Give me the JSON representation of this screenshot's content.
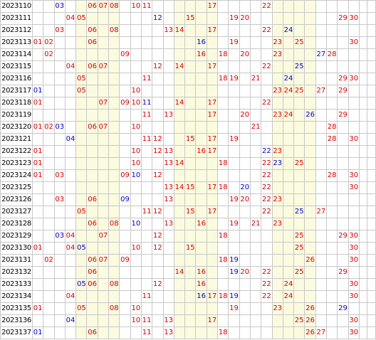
{
  "columns": 32,
  "shaded_columns": [
    5,
    6,
    7,
    8,
    14,
    15,
    16,
    17,
    23,
    24,
    25,
    26
  ],
  "colors": {
    "red": "#d40000",
    "blue": "#0000cc",
    "shade": "#fbfbdf",
    "grid": "#c8c8c8"
  },
  "rows": [
    {
      "issue": "2023110",
      "red": [
        "06",
        "07",
        "08",
        "10",
        "11",
        "17",
        "22"
      ],
      "blue": [
        "03"
      ]
    },
    {
      "issue": "2023111",
      "red": [
        "04",
        "05",
        "15",
        "19",
        "20",
        "29",
        "30"
      ],
      "blue": [
        "12"
      ]
    },
    {
      "issue": "2023112",
      "red": [
        "03",
        "06",
        "08",
        "13",
        "14",
        "17",
        "22"
      ],
      "blue": [
        "24"
      ]
    },
    {
      "issue": "2023113",
      "red": [
        "01",
        "02",
        "06",
        "19",
        "23",
        "25",
        "30"
      ],
      "blue": [
        "16"
      ]
    },
    {
      "issue": "2023114",
      "red": [
        "02",
        "09",
        "16",
        "18",
        "20",
        "23",
        "28"
      ],
      "blue": [
        "27"
      ]
    },
    {
      "issue": "2023115",
      "red": [
        "04",
        "06",
        "07",
        "12",
        "14",
        "17",
        "22"
      ],
      "blue": [
        "25"
      ]
    },
    {
      "issue": "2023116",
      "red": [
        "05",
        "11",
        "18",
        "19",
        "21",
        "29",
        "30"
      ],
      "blue": [
        "24"
      ]
    },
    {
      "issue": "2023117",
      "red": [
        "05",
        "10",
        "23",
        "24",
        "25",
        "27",
        "29"
      ],
      "blue": [
        "01"
      ]
    },
    {
      "issue": "2023118",
      "red": [
        "01",
        "07",
        "09",
        "10",
        "14",
        "17",
        "22"
      ],
      "blue": [
        "11"
      ]
    },
    {
      "issue": "2023119",
      "red": [
        "11",
        "13",
        "17",
        "20",
        "23",
        "24",
        "29"
      ],
      "blue": [
        "26"
      ]
    },
    {
      "issue": "2023120",
      "red": [
        "01",
        "02",
        "06",
        "07",
        "10",
        "21",
        "28"
      ],
      "blue": [
        "03"
      ]
    },
    {
      "issue": "2023121",
      "red": [
        "11",
        "12",
        "15",
        "17",
        "19",
        "28",
        "30"
      ],
      "blue": [
        "04"
      ]
    },
    {
      "issue": "2023122",
      "red": [
        "01",
        "10",
        "12",
        "13",
        "16",
        "17",
        "23"
      ],
      "blue": [
        "22"
      ]
    },
    {
      "issue": "2023123",
      "red": [
        "01",
        "10",
        "13",
        "14",
        "18",
        "22",
        "25"
      ],
      "blue": [
        "23"
      ]
    },
    {
      "issue": "2023124",
      "red": [
        "01",
        "03",
        "09",
        "12",
        "22",
        "28",
        "30"
      ],
      "blue": [
        "10"
      ]
    },
    {
      "issue": "2023125",
      "red": [
        "13",
        "14",
        "15",
        "17",
        "18",
        "22",
        "30"
      ],
      "blue": [
        "20"
      ]
    },
    {
      "issue": "2023126",
      "red": [
        "03",
        "06",
        "13",
        "19",
        "20",
        "22",
        "23"
      ],
      "blue": [
        "09"
      ]
    },
    {
      "issue": "2023127",
      "red": [
        "05",
        "11",
        "12",
        "15",
        "17",
        "22",
        "27"
      ],
      "blue": [
        "25"
      ]
    },
    {
      "issue": "2023128",
      "red": [
        "06",
        "08",
        "13",
        "16",
        "19",
        "21",
        "23"
      ],
      "blue": [
        "10"
      ]
    },
    {
      "issue": "2023129",
      "red": [
        "04",
        "07",
        "12",
        "18",
        "25",
        "29",
        "30"
      ],
      "blue": [
        "03"
      ]
    },
    {
      "issue": "2023130",
      "red": [
        "01",
        "04",
        "10",
        "12",
        "15",
        "25",
        "30"
      ],
      "blue": [
        "05"
      ]
    },
    {
      "issue": "2023131",
      "red": [
        "02",
        "06",
        "07",
        "09",
        "18",
        "26",
        "30"
      ],
      "blue": [
        "19"
      ]
    },
    {
      "issue": "2023132",
      "red": [
        "06",
        "14",
        "16",
        "20",
        "22",
        "25",
        "29"
      ],
      "blue": [
        "19"
      ]
    },
    {
      "issue": "2023133",
      "red": [
        "06",
        "08",
        "12",
        "16",
        "22",
        "24",
        "30"
      ],
      "blue": [
        "05"
      ]
    },
    {
      "issue": "2023134",
      "red": [
        "04",
        "11",
        "17",
        "18",
        "22",
        "24",
        "30"
      ],
      "blue": [
        "16",
        "19"
      ]
    },
    {
      "issue": "2023135",
      "red": [
        "01",
        "05",
        "08",
        "10",
        "19",
        "23",
        "26"
      ],
      "blue": [
        "29"
      ]
    },
    {
      "issue": "2023136",
      "red": [
        "10",
        "11",
        "13",
        "17",
        "25",
        "26",
        "30"
      ],
      "blue": [
        "04"
      ]
    },
    {
      "issue": "2023137",
      "red": [
        "06",
        "11",
        "13",
        "18",
        "26",
        "27",
        "30"
      ],
      "blue": [
        "01"
      ]
    }
  ]
}
